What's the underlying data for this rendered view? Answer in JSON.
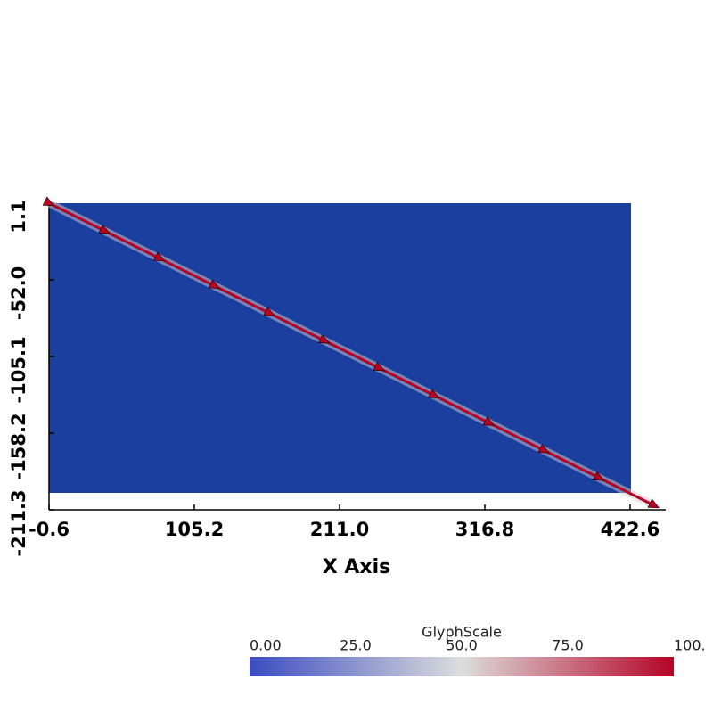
{
  "chart_data": {
    "type": "line",
    "x_label": "X Axis",
    "x": [
      -0.6,
      40,
      80,
      120,
      160,
      200,
      240,
      280,
      320,
      360,
      400,
      440
    ],
    "series": [
      {
        "name": "GlyphScale",
        "color": "#b40426",
        "values": [
          1.1,
          -18.2,
          -37.2,
          -56.2,
          -75.2,
          -94.2,
          -113.2,
          -132.2,
          -151.2,
          -170.2,
          -189.2,
          -208.2
        ]
      }
    ],
    "xlim": [
      -0.6,
      422.6
    ],
    "xticks": [
      -0.6,
      105.2,
      {
        "value": 211,
        "label": "211.0"
      },
      316.8,
      422.6
    ],
    "ylim": [
      -211.3,
      1.1
    ],
    "yticks": [
      1.1,
      {
        "value": -52,
        "label": "-52.0"
      },
      -105.1,
      -158.2,
      -211.3
    ],
    "colorbar": {
      "title": "GlyphScale",
      "lim": [
        0,
        100
      ],
      "ticks": [
        {
          "value": 0,
          "label": "0.00"
        },
        {
          "value": 25,
          "label": "25.0"
        },
        {
          "value": 50,
          "label": "50.0"
        },
        {
          "value": 75,
          "label": "75.0"
        },
        {
          "value": 100,
          "label": "100."
        }
      ],
      "colors": [
        "#3b4cc0",
        "#dddddd",
        "#b40426"
      ]
    }
  }
}
